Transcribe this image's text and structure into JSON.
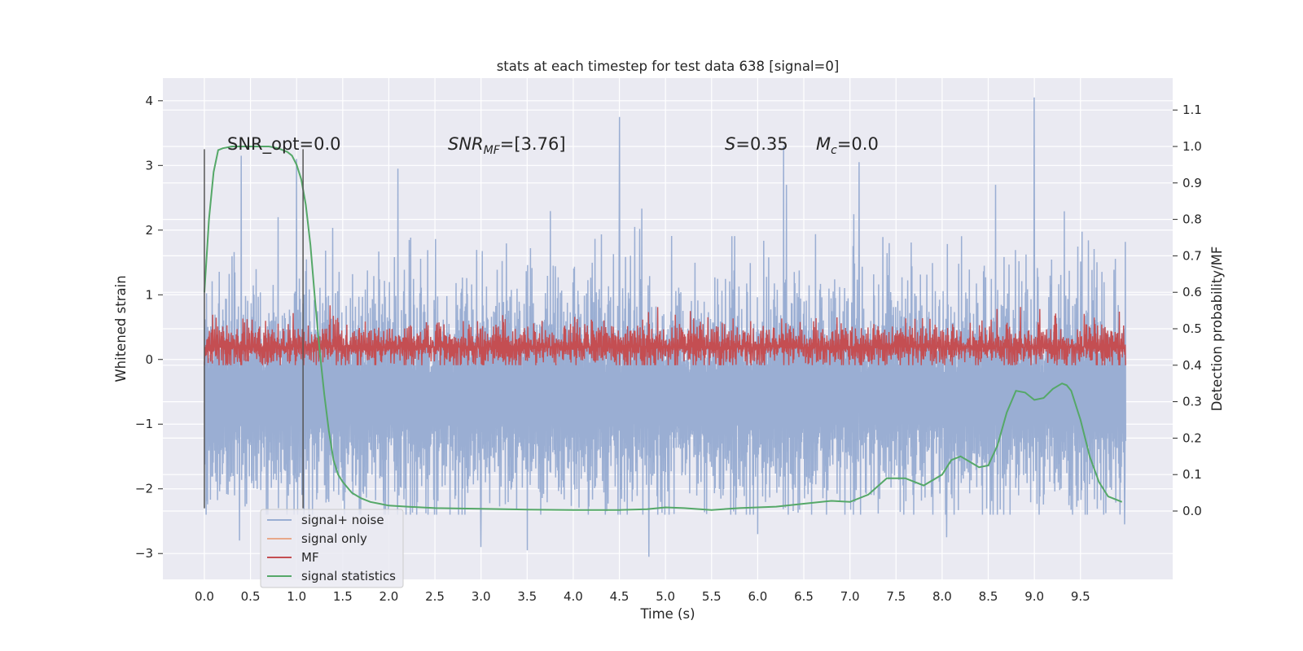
{
  "chart_data": {
    "type": "line",
    "title": "stats at each timestep for test data 638 [signal=0]",
    "xlabel": "Time (s)",
    "ylabel": "Whitened strain",
    "y2label": "Detection probability/MF",
    "xlim": [
      -0.45,
      10.5
    ],
    "ylim": [
      -3.4,
      4.35
    ],
    "y2lim": [
      -0.1875,
      1.1875
    ],
    "xticks": [
      0.0,
      0.5,
      1.0,
      1.5,
      2.0,
      2.5,
      3.0,
      3.5,
      4.0,
      4.5,
      5.0,
      5.5,
      6.0,
      6.5,
      7.0,
      7.5,
      8.0,
      8.5,
      9.0,
      9.5
    ],
    "xtick_labels": [
      "0.0",
      "0.5",
      "1.0",
      "1.5",
      "2.0",
      "2.5",
      "3.0",
      "3.5",
      "4.0",
      "4.5",
      "5.0",
      "5.5",
      "6.0",
      "6.5",
      "7.0",
      "7.5",
      "8.0",
      "8.5",
      "9.0",
      "9.5"
    ],
    "yticks": [
      -3,
      -2,
      -1,
      0,
      1,
      2,
      3,
      4
    ],
    "ytick_labels": [
      "−3",
      "−2",
      "−1",
      "0",
      "1",
      "2",
      "3",
      "4"
    ],
    "y2ticks": [
      0.0,
      0.1,
      0.2,
      0.3,
      0.4,
      0.5,
      0.6,
      0.7,
      0.8,
      0.9,
      1.0,
      1.1
    ],
    "y2tick_labels": [
      "0.0",
      "0.1",
      "0.2",
      "0.3",
      "0.4",
      "0.5",
      "0.6",
      "0.7",
      "0.8",
      "0.9",
      "1.0",
      "1.1"
    ],
    "grid": true,
    "legend_position": "lower-left",
    "annotations": {
      "snr_opt": "SNR_opt=0.0",
      "snr_mf_base": "SNR",
      "snr_mf_sub": "MF",
      "snr_mf_value": "=[3.76]",
      "s_sym": "S",
      "s_value": "=0.35",
      "mc_base": "M",
      "mc_sub": "c",
      "mc_value": "=0.0"
    },
    "vlines": {
      "x": [
        0.0,
        1.07
      ],
      "ymin": -2.3,
      "ymax": 3.25
    },
    "series": [
      {
        "name": "signal+ noise",
        "color": "#9aaed3",
        "axis": "left",
        "kind": "noise",
        "x_range": [
          0.0,
          9.99
        ],
        "center": -0.6,
        "amplitude": 1.45,
        "peaks": [
          [
            4.5,
            3.75
          ],
          [
            9.0,
            4.05
          ],
          [
            6.28,
            3.3
          ],
          [
            0.4,
            3.15
          ],
          [
            1.0,
            3.1
          ],
          [
            7.1,
            3.05
          ],
          [
            2.1,
            2.95
          ]
        ],
        "troughs": [
          [
            4.82,
            -3.05
          ],
          [
            3.5,
            -2.95
          ],
          [
            3.0,
            -2.9
          ],
          [
            0.38,
            -2.8
          ],
          [
            8.05,
            -2.75
          ],
          [
            6.0,
            -2.7
          ],
          [
            9.98,
            -2.55
          ]
        ]
      },
      {
        "name": "signal only",
        "color": "#e8a88a",
        "axis": "left",
        "kind": "none"
      },
      {
        "name": "MF",
        "color": "#c44e52",
        "axis": "right",
        "kind": "noise",
        "x_range": [
          0.0,
          9.99
        ],
        "center": 0.45,
        "amplitude": 0.08,
        "max": 0.6,
        "min": 0.4
      },
      {
        "name": "signal statistics",
        "color": "#55a868",
        "axis": "right",
        "kind": "curve",
        "x": [
          0.0,
          0.05,
          0.1,
          0.15,
          0.2,
          0.3,
          0.4,
          0.5,
          0.6,
          0.7,
          0.8,
          0.9,
          0.95,
          1.0,
          1.05,
          1.1,
          1.15,
          1.2,
          1.25,
          1.3,
          1.35,
          1.4,
          1.45,
          1.5,
          1.6,
          1.7,
          1.8,
          1.9,
          2.0,
          2.2,
          2.5,
          3.0,
          3.5,
          4.0,
          4.5,
          4.8,
          5.0,
          5.2,
          5.5,
          5.8,
          6.0,
          6.2,
          6.5,
          6.8,
          7.0,
          7.2,
          7.4,
          7.6,
          7.8,
          8.0,
          8.1,
          8.2,
          8.3,
          8.4,
          8.5,
          8.6,
          8.7,
          8.8,
          8.9,
          9.0,
          9.1,
          9.2,
          9.3,
          9.35,
          9.4,
          9.5,
          9.6,
          9.7,
          9.8,
          9.9,
          9.95
        ],
        "y": [
          0.6,
          0.8,
          0.93,
          0.99,
          0.995,
          1.0,
          1.0,
          1.0,
          1.0,
          1.0,
          0.995,
          0.985,
          0.975,
          0.95,
          0.91,
          0.84,
          0.73,
          0.58,
          0.44,
          0.32,
          0.22,
          0.14,
          0.1,
          0.08,
          0.05,
          0.035,
          0.025,
          0.02,
          0.015,
          0.012,
          0.008,
          0.006,
          0.004,
          0.003,
          0.003,
          0.005,
          0.01,
          0.008,
          0.003,
          0.008,
          0.01,
          0.012,
          0.02,
          0.028,
          0.025,
          0.045,
          0.09,
          0.09,
          0.07,
          0.1,
          0.14,
          0.15,
          0.135,
          0.12,
          0.125,
          0.18,
          0.27,
          0.33,
          0.325,
          0.305,
          0.31,
          0.335,
          0.35,
          0.345,
          0.33,
          0.25,
          0.15,
          0.08,
          0.04,
          0.03,
          0.025
        ]
      }
    ]
  }
}
